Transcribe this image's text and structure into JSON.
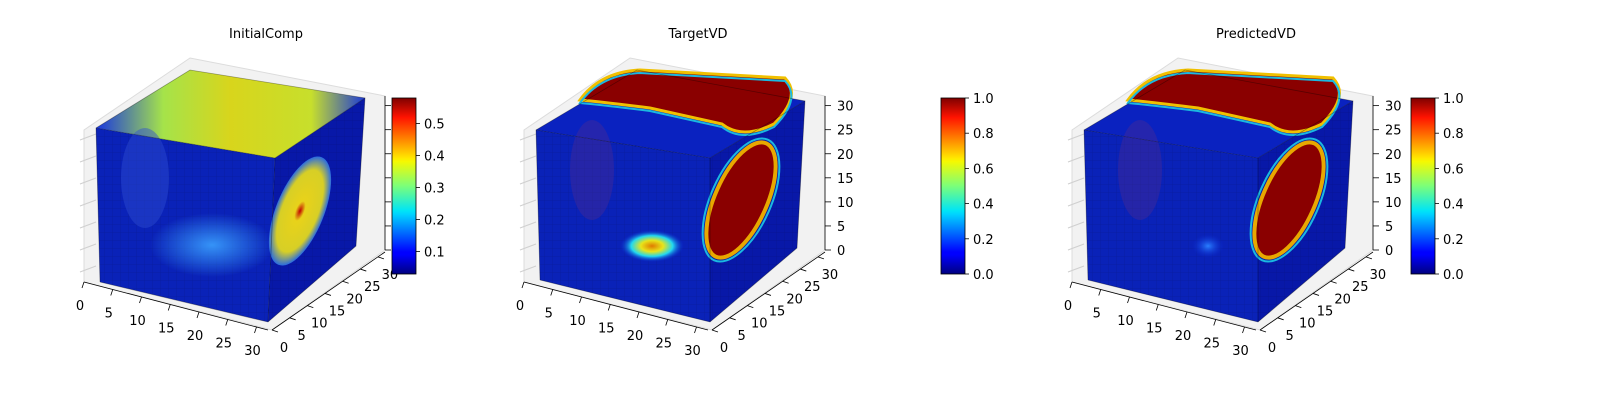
{
  "chart_data": [
    {
      "type": "heatmap",
      "title": "InitialComp",
      "x_ticks": [
        "0",
        "5",
        "10",
        "15",
        "20",
        "25",
        "30"
      ],
      "y_ticks": [
        "0",
        "5",
        "10",
        "15",
        "20",
        "25",
        "30"
      ],
      "z_ticks": [],
      "xlim": [
        0,
        32
      ],
      "ylim": [
        0,
        32
      ],
      "zlim": [
        0,
        32
      ],
      "colormap": "jet",
      "colorbar": {
        "ticks": [
          "0.1",
          "0.2",
          "0.3",
          "0.4",
          "0.5"
        ],
        "min": 0.03,
        "max": 0.58
      },
      "grid": true
    },
    {
      "type": "heatmap",
      "title": "TargetVD",
      "x_ticks": [
        "0",
        "5",
        "10",
        "15",
        "20",
        "25",
        "30"
      ],
      "y_ticks": [
        "0",
        "5",
        "10",
        "15",
        "20",
        "25",
        "30"
      ],
      "z_ticks": [
        "0",
        "5",
        "10",
        "15",
        "20",
        "25",
        "30"
      ],
      "xlim": [
        0,
        32
      ],
      "ylim": [
        0,
        32
      ],
      "zlim": [
        0,
        32
      ],
      "colormap": "jet",
      "colorbar": {
        "ticks": [
          "0.0",
          "0.2",
          "0.4",
          "0.6",
          "0.8",
          "1.0"
        ],
        "min": 0.0,
        "max": 1.0
      },
      "grid": true
    },
    {
      "type": "heatmap",
      "title": "PredictedVD",
      "x_ticks": [
        "0",
        "5",
        "10",
        "15",
        "20",
        "25",
        "30"
      ],
      "y_ticks": [
        "0",
        "5",
        "10",
        "15",
        "20",
        "25",
        "30"
      ],
      "z_ticks": [
        "0",
        "5",
        "10",
        "15",
        "20",
        "25",
        "30"
      ],
      "xlim": [
        0,
        32
      ],
      "ylim": [
        0,
        32
      ],
      "zlim": [
        0,
        32
      ],
      "colormap": "jet",
      "colorbar": {
        "ticks": [
          "0.0",
          "0.2",
          "0.4",
          "0.6",
          "0.8",
          "1.0"
        ],
        "min": 0.0,
        "max": 1.0
      },
      "grid": true
    }
  ]
}
